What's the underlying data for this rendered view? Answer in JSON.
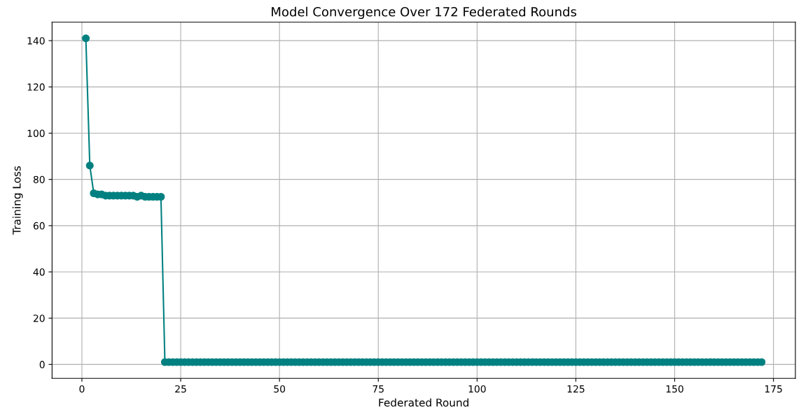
{
  "chart_data": {
    "type": "line",
    "title": "Model Convergence Over 172 Federated Rounds",
    "xlabel": "Federated Round",
    "ylabel": "Training Loss",
    "x": [
      1,
      2,
      3,
      4,
      5,
      6,
      7,
      8,
      9,
      10,
      11,
      12,
      13,
      14,
      15,
      16,
      17,
      18,
      19,
      20,
      21,
      22,
      23,
      24,
      25,
      26,
      27,
      28,
      29,
      30,
      31,
      32,
      33,
      34,
      35,
      36,
      37,
      38,
      39,
      40,
      41,
      42,
      43,
      44,
      45,
      46,
      47,
      48,
      49,
      50,
      51,
      52,
      53,
      54,
      55,
      56,
      57,
      58,
      59,
      60,
      61,
      62,
      63,
      64,
      65,
      66,
      67,
      68,
      69,
      70,
      71,
      72,
      73,
      74,
      75,
      76,
      77,
      78,
      79,
      80,
      81,
      82,
      83,
      84,
      85,
      86,
      87,
      88,
      89,
      90,
      91,
      92,
      93,
      94,
      95,
      96,
      97,
      98,
      99,
      100,
      101,
      102,
      103,
      104,
      105,
      106,
      107,
      108,
      109,
      110,
      111,
      112,
      113,
      114,
      115,
      116,
      117,
      118,
      119,
      120,
      121,
      122,
      123,
      124,
      125,
      126,
      127,
      128,
      129,
      130,
      131,
      132,
      133,
      134,
      135,
      136,
      137,
      138,
      139,
      140,
      141,
      142,
      143,
      144,
      145,
      146,
      147,
      148,
      149,
      150,
      151,
      152,
      153,
      154,
      155,
      156,
      157,
      158,
      159,
      160,
      161,
      162,
      163,
      164,
      165,
      166,
      167,
      168,
      169,
      170,
      171,
      172
    ],
    "series": [
      {
        "color": "#008080",
        "values": [
          141,
          86,
          74,
          73.5,
          73.5,
          73,
          73,
          73,
          73,
          73,
          73,
          73,
          73,
          72.5,
          73,
          72.5,
          72.5,
          72.5,
          72.5,
          72.5,
          1,
          1,
          1,
          1,
          1,
          1,
          1,
          1,
          1,
          1,
          1,
          1,
          1,
          1,
          1,
          1,
          1,
          1,
          1,
          1,
          1,
          1,
          1,
          1,
          1,
          1,
          1,
          1,
          1,
          1,
          1,
          1,
          1,
          1,
          1,
          1,
          1,
          1,
          1,
          1,
          1,
          1,
          1,
          1,
          1,
          1,
          1,
          1,
          1,
          1,
          1,
          1,
          1,
          1,
          1,
          1,
          1,
          1,
          1,
          1,
          1,
          1,
          1,
          1,
          1,
          1,
          1,
          1,
          1,
          1,
          1,
          1,
          1,
          1,
          1,
          1,
          1,
          1,
          1,
          1,
          1,
          1,
          1,
          1,
          1,
          1,
          1,
          1,
          1,
          1,
          1,
          1,
          1,
          1,
          1,
          1,
          1,
          1,
          1,
          1,
          1,
          1,
          1,
          1,
          1,
          1,
          1,
          1,
          1,
          1,
          1,
          1,
          1,
          1,
          1,
          1,
          1,
          1,
          1,
          1,
          1,
          1,
          1,
          1,
          1,
          1,
          1,
          1,
          1,
          1,
          1,
          1,
          1,
          1,
          1,
          1,
          1,
          1,
          1,
          1,
          1,
          1,
          1,
          1,
          1,
          1,
          1,
          1,
          1,
          1,
          1,
          1
        ]
      }
    ],
    "xlim": [
      -7.55,
      180.55
    ],
    "ylim": [
      -6,
      148
    ],
    "xticks": [
      0,
      25,
      50,
      75,
      100,
      125,
      150,
      175
    ],
    "yticks": [
      0,
      20,
      40,
      60,
      80,
      100,
      120,
      140
    ],
    "grid": true,
    "marker": "circle",
    "line_style": "solid"
  }
}
